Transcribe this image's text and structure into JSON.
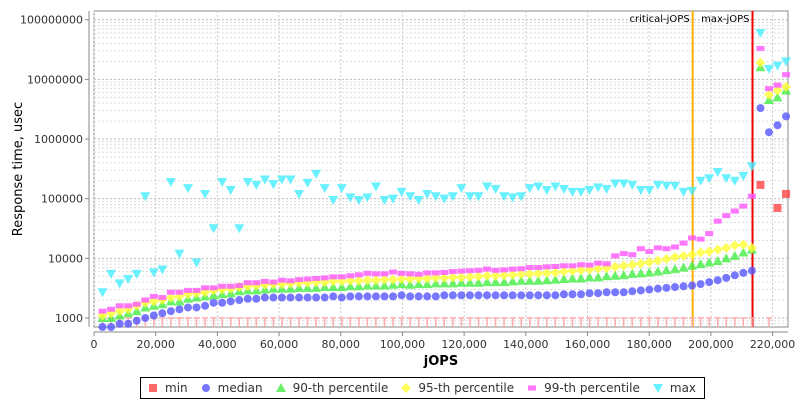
{
  "chart_data": {
    "type": "scatter",
    "title": "",
    "xlabel": "jOPS",
    "ylabel": "Response time, usec",
    "yscale": "log",
    "xlim": [
      0,
      225000
    ],
    "ylim": [
      706,
      140000000
    ],
    "x_step": 2770,
    "x_ticks": [
      "0",
      "20,000",
      "40,000",
      "60,000",
      "80,000",
      "100,000",
      "120,000",
      "140,000",
      "160,000",
      "180,000",
      "200,000",
      "220,000"
    ],
    "x_tick_values": [
      0,
      20000,
      40000,
      60000,
      80000,
      100000,
      120000,
      140000,
      160000,
      180000,
      200000,
      220000
    ],
    "y_ticks": [
      "1000",
      "10000",
      "100000",
      "1000000",
      "10000000",
      "100000000"
    ],
    "y_tick_values": [
      1000,
      10000,
      100000,
      1000000,
      10000000,
      100000000
    ],
    "grid": true,
    "legend_position": "bottom",
    "markers": [
      {
        "label": "critical-jOPS",
        "x": 194100,
        "color": "#ffb000"
      },
      {
        "label": "max-jOPS",
        "x": 213500,
        "color": "#ee0000"
      }
    ],
    "series": [
      {
        "name": "min",
        "color": "#ff4444",
        "shape": "square",
        "values": [
          1000,
          1000,
          1000,
          1000,
          1000,
          1000,
          1000,
          1000,
          1000,
          1000,
          1000,
          1000,
          1000,
          1000,
          1000,
          1000,
          1000,
          1000,
          1000,
          1000,
          1000,
          1000,
          1000,
          1000,
          1000,
          1000,
          1000,
          1000,
          1000,
          1000,
          1000,
          1000,
          1000,
          1000,
          1000,
          1000,
          1000,
          1000,
          1000,
          1000,
          1000,
          1000,
          1000,
          1000,
          1000,
          1000,
          1000,
          1000,
          1000,
          1000,
          1000,
          1000,
          1000,
          1000,
          1000,
          1000,
          1000,
          1000,
          1000,
          1000,
          1000,
          1000,
          1000,
          1000,
          1000,
          1000,
          1000,
          1000,
          1000,
          1000,
          1000,
          1000,
          1000,
          1000,
          1000,
          1000,
          1000,
          170000,
          1000,
          70000,
          120000
        ]
      },
      {
        "name": "median",
        "color": "#5555ff",
        "shape": "circle",
        "values": [
          700,
          700,
          800,
          800,
          900,
          1000,
          1100,
          1200,
          1300,
          1400,
          1500,
          1500,
          1600,
          1800,
          1800,
          1900,
          2000,
          2100,
          2100,
          2200,
          2200,
          2200,
          2200,
          2200,
          2200,
          2200,
          2200,
          2300,
          2200,
          2300,
          2300,
          2300,
          2300,
          2300,
          2300,
          2400,
          2300,
          2300,
          2300,
          2300,
          2400,
          2400,
          2400,
          2400,
          2400,
          2400,
          2400,
          2400,
          2400,
          2400,
          2400,
          2400,
          2400,
          2400,
          2500,
          2500,
          2500,
          2600,
          2600,
          2700,
          2700,
          2700,
          2800,
          2900,
          3000,
          3100,
          3200,
          3300,
          3400,
          3500,
          3700,
          4000,
          4300,
          4700,
          5200,
          5700,
          6200,
          3300000,
          1300000,
          1700000,
          2400000
        ]
      },
      {
        "name": "90-th percentile",
        "color": "#44ee44",
        "shape": "triangle",
        "values": [
          1000,
          1000,
          1100,
          1200,
          1300,
          1500,
          1600,
          1700,
          1900,
          1900,
          2100,
          2200,
          2300,
          2400,
          2500,
          2600,
          2800,
          2900,
          2900,
          3000,
          3100,
          3100,
          3100,
          3200,
          3200,
          3200,
          3300,
          3300,
          3300,
          3400,
          3400,
          3500,
          3500,
          3500,
          3600,
          3700,
          3600,
          3700,
          3700,
          3800,
          3800,
          3800,
          3900,
          3900,
          3900,
          4000,
          4000,
          4000,
          4100,
          4200,
          4200,
          4200,
          4300,
          4400,
          4500,
          4600,
          4600,
          4800,
          4800,
          5000,
          5100,
          5200,
          5500,
          5600,
          5800,
          6000,
          6300,
          6600,
          7000,
          7500,
          8000,
          8500,
          9000,
          10000,
          11000,
          12500,
          14000,
          16000000,
          4500000,
          5000000,
          6500000
        ]
      },
      {
        "name": "95-th percentile",
        "color": "#ffff33",
        "shape": "diamond",
        "values": [
          1100,
          1200,
          1300,
          1400,
          1600,
          1800,
          1900,
          2000,
          2200,
          2300,
          2500,
          2600,
          2700,
          2900,
          3000,
          3100,
          3300,
          3400,
          3500,
          3600,
          3700,
          3700,
          3800,
          3900,
          3900,
          4000,
          4000,
          4100,
          4100,
          4200,
          4200,
          4300,
          4300,
          4400,
          4400,
          4500,
          4500,
          4600,
          4600,
          4700,
          4700,
          4800,
          4800,
          4900,
          5000,
          5100,
          5100,
          5200,
          5300,
          5400,
          5500,
          5600,
          5700,
          5800,
          6000,
          6200,
          6300,
          6500,
          6700,
          6900,
          7200,
          7500,
          7800,
          8200,
          8600,
          9200,
          9800,
          10500,
          11000,
          11500,
          12500,
          13000,
          14000,
          15000,
          16500,
          17000,
          15000,
          19000000,
          5500000,
          6500000,
          7500000
        ]
      },
      {
        "name": "99-th percentile",
        "color": "#ff55ff",
        "shape": "rect",
        "values": [
          1300,
          1400,
          1600,
          1600,
          1700,
          2000,
          2300,
          2200,
          2700,
          2700,
          2900,
          2900,
          3200,
          3200,
          3400,
          3400,
          3500,
          3900,
          3900,
          4100,
          4000,
          4300,
          4200,
          4400,
          4500,
          4600,
          4700,
          4900,
          4900,
          5100,
          5300,
          5600,
          5500,
          5500,
          5900,
          5600,
          5500,
          5400,
          5700,
          5700,
          5800,
          6000,
          6100,
          6200,
          6300,
          6600,
          6300,
          6400,
          6600,
          6700,
          7000,
          7000,
          7200,
          7300,
          7500,
          7500,
          7800,
          7700,
          8300,
          8100,
          11000,
          12000,
          11500,
          14500,
          13000,
          15000,
          14500,
          15500,
          18000,
          22000,
          21000,
          26000,
          42000,
          52000,
          62000,
          75000,
          110000,
          33000000,
          7000000,
          8000000,
          12000000
        ]
      },
      {
        "name": "max",
        "color": "#44eeff",
        "shape": "invtriangle",
        "values": [
          2700,
          5500,
          3800,
          4500,
          5500,
          110000,
          5800,
          6500,
          190000,
          12000,
          150000,
          8500,
          120000,
          32000,
          190000,
          140000,
          32000,
          190000,
          170000,
          210000,
          175000,
          210000,
          210000,
          120000,
          185000,
          260000,
          150000,
          95000,
          150000,
          105000,
          95000,
          105000,
          160000,
          95000,
          100000,
          130000,
          110000,
          95000,
          120000,
          110000,
          100000,
          110000,
          150000,
          110000,
          110000,
          160000,
          145000,
          110000,
          105000,
          110000,
          150000,
          160000,
          140000,
          160000,
          145000,
          130000,
          130000,
          140000,
          155000,
          145000,
          180000,
          180000,
          170000,
          140000,
          140000,
          170000,
          165000,
          165000,
          130000,
          135000,
          200000,
          220000,
          280000,
          220000,
          200000,
          240000,
          350000,
          60000000,
          15000000,
          17000000,
          20000000
        ]
      }
    ]
  }
}
